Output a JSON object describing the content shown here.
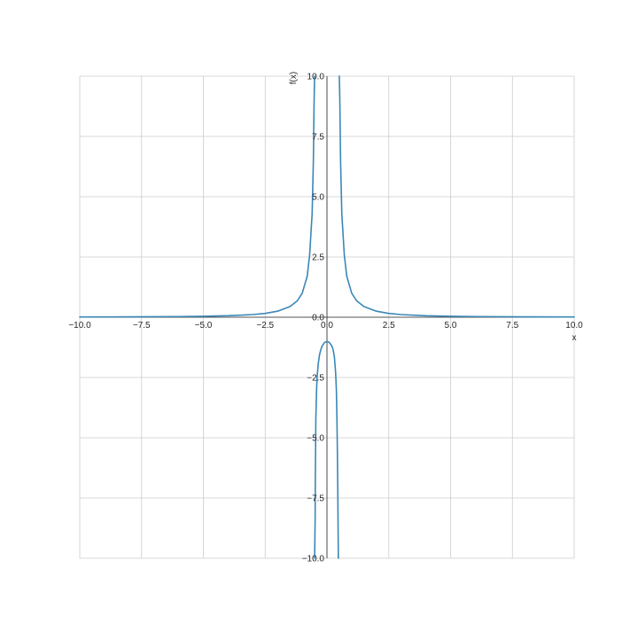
{
  "chart_data": {
    "type": "line",
    "title": "",
    "xlabel": "x",
    "ylabel": "f(x)",
    "xlim": [
      -10,
      10
    ],
    "ylim": [
      -10,
      10
    ],
    "grid": true,
    "legend": "none",
    "x_ticks": [
      -10,
      -7.5,
      -5,
      -2.5,
      0,
      2.5,
      5,
      7.5,
      10
    ],
    "y_ticks": [
      -10,
      -7.5,
      -5,
      -2.5,
      0,
      2.5,
      5,
      7.5,
      10
    ],
    "x_tick_labels": [
      "−10.0",
      "−7.5",
      "−5.0",
      "−2.5",
      "0.0",
      "2.5",
      "5.0",
      "7.5",
      "10.0"
    ],
    "y_tick_labels": [
      "−10.0",
      "−7.5",
      "−5.0",
      "−2.5",
      "0.0",
      "2.5",
      "5.0",
      "7.5",
      "10.0"
    ],
    "series": [
      {
        "color": "#3a87b7",
        "segments": [
          {
            "x": [
              -10,
              -8,
              -6,
              -5,
              -4,
              -3,
              -2.5,
              -2,
              -1.5,
              -1.2,
              -1,
              -0.8,
              -0.7,
              -0.6,
              -0.55,
              -0.52,
              -0.5,
              -0.49
            ],
            "y": [
              0.01,
              0.016,
              0.028,
              0.04,
              0.063,
              0.11,
              0.16,
              0.25,
              0.44,
              0.68,
              1.0,
              1.7,
              2.6,
              4.3,
              6.5,
              9.0,
              10.0,
              10.0
            ]
          },
          {
            "x": [
              -0.5,
              -0.48,
              -0.47,
              -0.45,
              -0.42,
              -0.4,
              -0.35,
              -0.3,
              -0.25,
              -0.2,
              -0.1,
              0,
              0.1,
              0.2,
              0.25,
              0.3,
              0.35,
              0.38,
              0.4,
              0.42,
              0.44,
              0.46
            ],
            "y": [
              -10,
              -8.5,
              -6.5,
              -4.2,
              -3.0,
              -2.5,
              -1.9,
              -1.55,
              -1.35,
              -1.2,
              -1.05,
              -1.0,
              -1.05,
              -1.2,
              -1.35,
              -1.65,
              -2.3,
              -3.0,
              -4.0,
              -5.5,
              -7.5,
              -10
            ]
          },
          {
            "x": [
              0.49,
              0.5,
              0.52,
              0.55,
              0.6,
              0.7,
              0.8,
              1,
              1.2,
              1.5,
              2,
              2.5,
              3,
              4,
              5,
              6,
              8,
              10
            ],
            "y": [
              10.0,
              10.0,
              9.0,
              6.5,
              4.3,
              2.6,
              1.7,
              1.0,
              0.68,
              0.44,
              0.25,
              0.16,
              0.11,
              0.063,
              0.04,
              0.028,
              0.016,
              0.01
            ]
          }
        ]
      }
    ]
  }
}
